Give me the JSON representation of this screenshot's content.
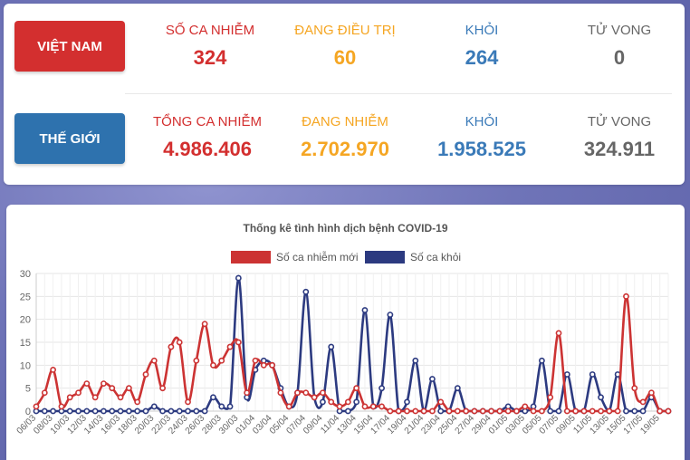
{
  "vietnam": {
    "button": "VIỆT NAM",
    "stats": [
      {
        "label": "SỐ CA NHIỄM",
        "value": "324",
        "color": "#d32f2f"
      },
      {
        "label": "ĐANG ĐIỀU TRỊ",
        "value": "60",
        "color": "#f5a623"
      },
      {
        "label": "KHỎI",
        "value": "264",
        "color": "#3a7ab8"
      },
      {
        "label": "TỬ VONG",
        "value": "0",
        "color": "#666666"
      }
    ]
  },
  "world": {
    "button": "THẾ GIỚI",
    "stats": [
      {
        "label": "TỔNG CA NHIỄM",
        "value": "4.986.406",
        "color": "#d32f2f"
      },
      {
        "label": "ĐANG NHIỄM",
        "value": "2.702.970",
        "color": "#f5a623"
      },
      {
        "label": "KHỎI",
        "value": "1.958.525",
        "color": "#3a7ab8"
      },
      {
        "label": "TỬ VONG",
        "value": "324.911",
        "color": "#666666"
      }
    ]
  },
  "chart_data": {
    "type": "line",
    "title": "Thống kê tình hình dịch bệnh COVID-19",
    "xlabel": "",
    "ylabel": "",
    "ylim": [
      0,
      30
    ],
    "yticks": [
      0,
      5,
      10,
      15,
      20,
      25,
      30
    ],
    "grid": true,
    "legend_position": "top",
    "x": [
      "06/03",
      "07/03",
      "08/03",
      "09/03",
      "10/03",
      "11/03",
      "12/03",
      "13/03",
      "14/03",
      "15/03",
      "16/03",
      "17/03",
      "18/03",
      "19/03",
      "20/03",
      "21/03",
      "22/03",
      "23/03",
      "24/03",
      "25/03",
      "26/03",
      "27/03",
      "28/03",
      "29/03",
      "30/03",
      "31/03",
      "01/04",
      "02/04",
      "03/04",
      "04/04",
      "05/04",
      "06/04",
      "07/04",
      "08/04",
      "09/04",
      "10/04",
      "11/04",
      "12/04",
      "13/04",
      "14/04",
      "15/04",
      "16/04",
      "17/04",
      "18/04",
      "19/04",
      "20/04",
      "21/04",
      "22/04",
      "23/04",
      "24/04",
      "25/04",
      "26/04",
      "27/04",
      "28/04",
      "29/04",
      "30/04",
      "01/05",
      "02/05",
      "03/05",
      "04/05",
      "05/05",
      "06/05",
      "07/05",
      "08/05",
      "09/05",
      "10/05",
      "11/05",
      "12/05",
      "13/05",
      "14/05",
      "15/05",
      "16/05",
      "17/05",
      "18/05",
      "19/05",
      "20/05"
    ],
    "xtick_labels": [
      "06/03",
      "08/03",
      "10/03",
      "12/03",
      "14/03",
      "16/03",
      "18/03",
      "20/03",
      "22/03",
      "24/03",
      "26/03",
      "28/03",
      "30/03",
      "01/04",
      "03/04",
      "05/04",
      "07/04",
      "09/04",
      "11/04",
      "13/04",
      "15/04",
      "17/04",
      "19/04",
      "21/04",
      "23/04",
      "25/04",
      "27/04",
      "29/04",
      "01/05",
      "03/05",
      "05/05",
      "07/05",
      "09/05",
      "11/05",
      "13/05",
      "15/05",
      "17/05",
      "19/05"
    ],
    "series": [
      {
        "name": "Số ca nhiễm mới",
        "color": "#cc3333",
        "values": [
          1,
          4,
          9,
          1,
          3,
          4,
          6,
          3,
          6,
          5,
          3,
          5,
          2,
          8,
          11,
          5,
          14,
          15,
          2,
          11,
          19,
          10,
          11,
          14,
          15,
          4,
          11,
          10,
          10,
          4,
          1,
          4,
          4,
          3,
          4,
          2,
          1,
          2,
          5,
          1,
          1,
          1,
          0,
          0,
          0,
          0,
          0,
          0,
          2,
          0,
          0,
          0,
          0,
          0,
          0,
          0,
          0,
          0,
          1,
          0,
          0,
          3,
          17,
          0,
          0,
          0,
          0,
          0,
          0,
          0,
          25,
          5,
          2,
          4,
          0,
          0
        ]
      },
      {
        "name": "Số ca khỏi",
        "color": "#2c3a80",
        "values": [
          0,
          0,
          0,
          0,
          0,
          0,
          0,
          0,
          0,
          0,
          0,
          0,
          0,
          0,
          1,
          0,
          0,
          0,
          0,
          0,
          0,
          3,
          1,
          1,
          29,
          3,
          9,
          11,
          10,
          5,
          1,
          4,
          26,
          3,
          2,
          14,
          0,
          0,
          2,
          22,
          1,
          5,
          21,
          0,
          2,
          11,
          0,
          7,
          0,
          0,
          5,
          0,
          0,
          0,
          0,
          0,
          1,
          0,
          0,
          1,
          11,
          0,
          0,
          8,
          0,
          0,
          8,
          3,
          0,
          8,
          0,
          0,
          0,
          3,
          0,
          0
        ]
      }
    ]
  }
}
